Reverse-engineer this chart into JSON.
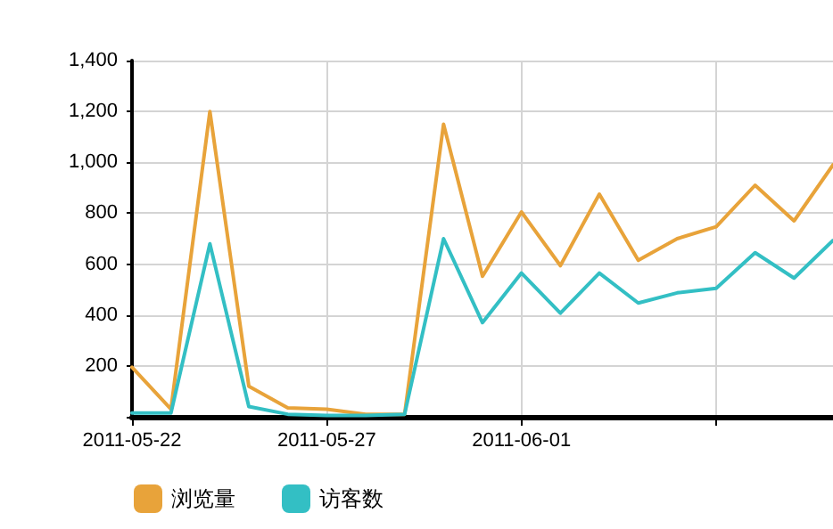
{
  "chart_data": {
    "type": "line",
    "x": [
      "2011-05-22",
      "2011-05-23",
      "2011-05-24",
      "2011-05-25",
      "2011-05-26",
      "2011-05-27",
      "2011-05-28",
      "2011-05-29",
      "2011-05-30",
      "2011-05-31",
      "2011-06-01",
      "2011-06-02",
      "2011-06-03",
      "2011-06-04",
      "2011-06-05",
      "2011-06-06",
      "2011-06-07",
      "2011-06-08",
      "2011-06-09"
    ],
    "series": [
      {
        "name": "浏览量",
        "color": "#e8a33a",
        "values": [
          195,
          30,
          1200,
          120,
          35,
          30,
          10,
          10,
          1150,
          552,
          805,
          594,
          875,
          615,
          700,
          747,
          910,
          770,
          990
        ]
      },
      {
        "name": "访客数",
        "color": "#33bfc4",
        "values": [
          15,
          15,
          680,
          40,
          10,
          5,
          5,
          10,
          700,
          370,
          565,
          407,
          565,
          447,
          487,
          505,
          645,
          545,
          693
        ]
      }
    ],
    "xlim": [
      "2011-05-22",
      "2011-06-09"
    ],
    "xticks": [
      {
        "value": "2011-05-22",
        "label": "2011-05-22"
      },
      {
        "value": "2011-05-27",
        "label": "2011-05-27"
      },
      {
        "value": "2011-06-01",
        "label": "2011-06-01"
      },
      {
        "value": "2011-06-06",
        "label": null
      }
    ],
    "ylim": [
      0,
      1400
    ],
    "yticks": [
      {
        "value": 0,
        "label": null
      },
      {
        "value": 200,
        "label": "200"
      },
      {
        "value": 400,
        "label": "400"
      },
      {
        "value": 600,
        "label": "600"
      },
      {
        "value": 800,
        "label": "800"
      },
      {
        "value": 1000,
        "label": "1,000"
      },
      {
        "value": 1200,
        "label": "1,200"
      },
      {
        "value": 1400,
        "label": "1,400"
      }
    ],
    "grid": true,
    "legend": "bottom left",
    "marker": "none",
    "line_style": "solid"
  }
}
